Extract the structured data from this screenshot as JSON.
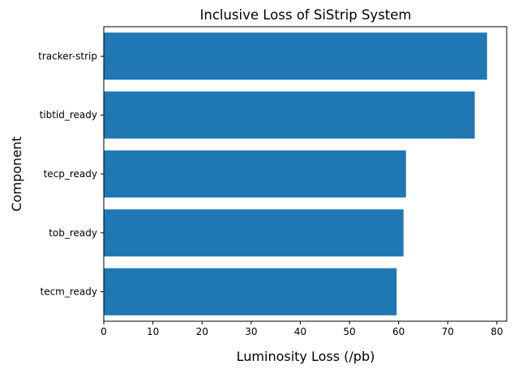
{
  "chart_data": {
    "type": "bar",
    "orientation": "horizontal",
    "title": "Inclusive Loss of SiStrip System",
    "xlabel": "Luminosity Loss (/pb)",
    "ylabel": "Component",
    "categories": [
      "tracker-strip",
      "tibtid_ready",
      "tecp_ready",
      "tob_ready",
      "tecm_ready"
    ],
    "values": [
      78.0,
      75.5,
      61.5,
      61.0,
      59.6
    ],
    "xlim": [
      0,
      82
    ],
    "xticks": [
      "0",
      "10",
      "20",
      "30",
      "40",
      "50",
      "60",
      "70",
      "80"
    ],
    "bar_color": "#1f77b4",
    "grid": false,
    "legend": "none"
  }
}
